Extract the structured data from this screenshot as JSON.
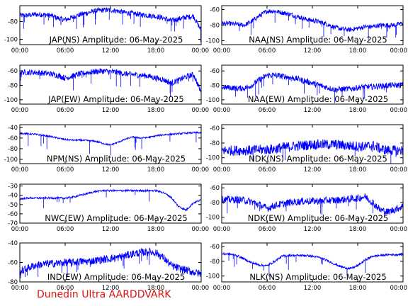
{
  "credit": "Dunedin Ultra AARDDVARK",
  "colors": {
    "trace": "#0000ff",
    "axis": "#000000",
    "credit": "#e01010"
  },
  "x_tick_labels": [
    "00:00",
    "06:00",
    "12:00",
    "18:00",
    "00:00"
  ],
  "chart_data": [
    {
      "type": "line",
      "title": "JAP(NS) Amplitude: 06-May-2025",
      "x_range_hours": [
        0,
        24
      ],
      "ylim": [
        -106,
        -62
      ],
      "yticks": [
        -80,
        -100
      ],
      "ytick_labels": [
        "-80",
        "-100"
      ],
      "grid": false,
      "series": [
        {
          "x": [
            0,
            1,
            2,
            3,
            4,
            5,
            6,
            7,
            8,
            9,
            10,
            11,
            12,
            13,
            14,
            15,
            16,
            17,
            18,
            19,
            20,
            21,
            22,
            23,
            24
          ],
          "y": [
            -73,
            -73,
            -72,
            -72,
            -73,
            -76,
            -78,
            -75,
            -72,
            -70,
            -68,
            -67,
            -67,
            -68,
            -70,
            -71,
            -72,
            -73,
            -74,
            -76,
            -79,
            -77,
            -75,
            -74,
            -90
          ],
          "spread": 3,
          "spikes": 25
        }
      ]
    },
    {
      "type": "line",
      "title": "NAA(NS) Amplitude: 06-May-2025",
      "x_range_hours": [
        0,
        24
      ],
      "ylim": [
        -105,
        -55
      ],
      "yticks": [
        -60,
        -80,
        -100
      ],
      "ytick_labels": [
        "-60",
        "-80",
        "-100"
      ],
      "grid": false,
      "series": [
        {
          "x": [
            0,
            1,
            2,
            3,
            4,
            5,
            6,
            7,
            8,
            9,
            10,
            11,
            12,
            13,
            14,
            15,
            16,
            17,
            18,
            19,
            20,
            21,
            22,
            23,
            24
          ],
          "y": [
            -78,
            -78,
            -79,
            -80,
            -75,
            -68,
            -62,
            -62,
            -64,
            -66,
            -69,
            -72,
            -74,
            -76,
            -79,
            -83,
            -85,
            -86,
            -84,
            -82,
            -82,
            -80,
            -80,
            -80,
            -77
          ],
          "spread": 3,
          "spikes": 20
        }
      ]
    },
    {
      "type": "line",
      "title": "JAP(EW) Amplitude: 06-May-2025",
      "x_range_hours": [
        0,
        24
      ],
      "ylim": [
        -106,
        -52
      ],
      "yticks": [
        -60,
        -80,
        -100
      ],
      "ytick_labels": [
        "-60",
        "-80",
        "-100"
      ],
      "grid": false,
      "series": [
        {
          "x": [
            0,
            1,
            2,
            3,
            4,
            5,
            6,
            7,
            8,
            9,
            10,
            11,
            12,
            13,
            14,
            15,
            16,
            17,
            18,
            19,
            20,
            21,
            22,
            23,
            24
          ],
          "y": [
            -62,
            -62,
            -62,
            -63,
            -64,
            -66,
            -70,
            -67,
            -64,
            -62,
            -61,
            -60,
            -61,
            -62,
            -64,
            -65,
            -66,
            -67,
            -70,
            -72,
            -77,
            -73,
            -68,
            -65,
            -90
          ],
          "spread": 4,
          "spikes": 20
        }
      ]
    },
    {
      "type": "line",
      "title": "NAA(EW) Amplitude: 06-May-2025",
      "x_range_hours": [
        0,
        24
      ],
      "ylim": [
        -106,
        -52
      ],
      "yticks": [
        -60,
        -80,
        -100
      ],
      "ytick_labels": [
        "-60",
        "-80",
        "-100"
      ],
      "grid": false,
      "series": [
        {
          "x": [
            0,
            1,
            2,
            3,
            4,
            5,
            6,
            7,
            8,
            9,
            10,
            11,
            12,
            13,
            14,
            15,
            16,
            17,
            18,
            19,
            20,
            21,
            22,
            23,
            24
          ],
          "y": [
            -83,
            -83,
            -84,
            -84,
            -80,
            -72,
            -66,
            -66,
            -67,
            -69,
            -71,
            -74,
            -77,
            -80,
            -83,
            -86,
            -85,
            -85,
            -83,
            -82,
            -82,
            -81,
            -80,
            -80,
            -79
          ],
          "spread": 4,
          "spikes": 20
        }
      ]
    },
    {
      "type": "line",
      "title": "NPM(NS) Amplitude: 06-May-2025",
      "x_range_hours": [
        0,
        24
      ],
      "ylim": [
        -108,
        -35
      ],
      "yticks": [
        -40,
        -60,
        -80,
        -100
      ],
      "ytick_labels": [
        "-40",
        "-60",
        "-80",
        "-100"
      ],
      "grid": false,
      "series": [
        {
          "x": [
            0,
            1,
            2,
            3,
            4,
            5,
            6,
            7,
            8,
            9,
            10,
            11,
            12,
            13,
            14,
            15,
            16,
            17,
            18,
            19,
            20,
            21,
            22,
            23,
            24
          ],
          "y": [
            -51,
            -52,
            -53,
            -55,
            -57,
            -60,
            -63,
            -64,
            -64,
            -65,
            -66,
            -70,
            -73,
            -68,
            -62,
            -58,
            -60,
            -59,
            -56,
            -54,
            -53,
            -52,
            -51,
            -50,
            -50
          ],
          "spread": 1.5,
          "spikes": 12
        }
      ]
    },
    {
      "type": "line",
      "title": "NDK(NS) Amplitude: 06-May-2025",
      "x_range_hours": [
        0,
        24
      ],
      "ylim": [
        -108,
        -55
      ],
      "yticks": [
        -60,
        -80,
        -100
      ],
      "ytick_labels": [
        "-60",
        "-80",
        "-100"
      ],
      "grid": false,
      "series": [
        {
          "x": [
            0,
            1,
            2,
            3,
            4,
            5,
            6,
            7,
            8,
            9,
            10,
            11,
            12,
            13,
            14,
            15,
            16,
            17,
            18,
            19,
            20,
            21,
            22,
            23,
            24
          ],
          "y": [
            -90,
            -90,
            -90,
            -90,
            -90,
            -89,
            -89,
            -88,
            -86,
            -85,
            -84,
            -83,
            -82,
            -82,
            -82,
            -82,
            -83,
            -84,
            -84,
            -85,
            -83,
            -88,
            -90,
            -90,
            -90
          ],
          "spread": 7,
          "spikes": 10
        }
      ]
    },
    {
      "type": "line",
      "title": "NWC(EW) Amplitude: 06-May-2025",
      "x_range_hours": [
        0,
        24
      ],
      "ylim": [
        -70,
        -28
      ],
      "yticks": [
        -30,
        -40,
        -50,
        -60,
        -70
      ],
      "ytick_labels": [
        "-30",
        "-40",
        "-50",
        "-60",
        "-70"
      ],
      "grid": false,
      "series": [
        {
          "x": [
            0,
            1,
            2,
            3,
            4,
            5,
            6,
            7,
            8,
            9,
            10,
            11,
            12,
            13,
            14,
            15,
            16,
            17,
            18,
            19,
            20,
            21,
            22,
            23,
            24
          ],
          "y": [
            -44,
            -43,
            -43,
            -43,
            -43,
            -43,
            -43,
            -42,
            -40,
            -38,
            -36,
            -35,
            -35,
            -35,
            -35,
            -35,
            -35,
            -35,
            -35,
            -37,
            -42,
            -52,
            -56,
            -48,
            -45
          ],
          "spread": 1,
          "spikes": 8
        }
      ]
    },
    {
      "type": "line",
      "title": "NDK(EW) Amplitude: 06-May-2025",
      "x_range_hours": [
        0,
        24
      ],
      "ylim": [
        -108,
        -55
      ],
      "yticks": [
        -60,
        -80,
        -100
      ],
      "ytick_labels": [
        "-60",
        "-80",
        "-100"
      ],
      "grid": false,
      "series": [
        {
          "x": [
            0,
            1,
            2,
            3,
            4,
            5,
            6,
            7,
            8,
            9,
            10,
            11,
            12,
            13,
            14,
            15,
            16,
            17,
            18,
            19,
            20,
            21,
            22,
            23,
            24
          ],
          "y": [
            -76,
            -76,
            -76,
            -77,
            -79,
            -83,
            -88,
            -84,
            -82,
            -80,
            -79,
            -78,
            -78,
            -78,
            -77,
            -77,
            -76,
            -75,
            -74,
            -72,
            -80,
            -90,
            -93,
            -89,
            -85
          ],
          "spread": 5,
          "spikes": 12
        }
      ]
    },
    {
      "type": "line",
      "title": "IND(EW) Amplitude: 06-May-2025",
      "x_range_hours": [
        0,
        24
      ],
      "ylim": [
        -80,
        -40
      ],
      "yticks": [
        -40,
        -60,
        -80
      ],
      "ytick_labels": [
        "-40",
        "-60",
        "-80"
      ],
      "grid": false,
      "series": [
        {
          "x": [
            0,
            1,
            2,
            3,
            4,
            5,
            6,
            7,
            8,
            9,
            10,
            11,
            12,
            13,
            14,
            15,
            16,
            17,
            18,
            19,
            20,
            21,
            22,
            23,
            24
          ],
          "y": [
            -70,
            -66,
            -63,
            -62,
            -61,
            -61,
            -60,
            -60,
            -59,
            -59,
            -58,
            -57,
            -56,
            -55,
            -53,
            -51,
            -50,
            -49,
            -50,
            -55,
            -63,
            -66,
            -68,
            -70,
            -72
          ],
          "spread": 4,
          "spikes": 18
        }
      ]
    },
    {
      "type": "line",
      "title": "NLK(NS) Amplitude: 06-May-2025",
      "x_range_hours": [
        0,
        24
      ],
      "ylim": [
        -108,
        -55
      ],
      "yticks": [
        -60,
        -80,
        -100
      ],
      "ytick_labels": [
        "-60",
        "-80",
        "-100"
      ],
      "grid": false,
      "series": [
        {
          "x": [
            0,
            1,
            2,
            3,
            4,
            5,
            6,
            7,
            8,
            9,
            10,
            11,
            12,
            13,
            14,
            15,
            16,
            17,
            18,
            19,
            20,
            21,
            22,
            23,
            24
          ],
          "y": [
            -70,
            -70,
            -72,
            -77,
            -82,
            -85,
            -86,
            -80,
            -73,
            -72,
            -72,
            -72,
            -73,
            -75,
            -79,
            -84,
            -88,
            -90,
            -86,
            -78,
            -73,
            -72,
            -71,
            -71,
            -70
          ],
          "spread": 1.5,
          "spikes": 15
        }
      ]
    }
  ]
}
